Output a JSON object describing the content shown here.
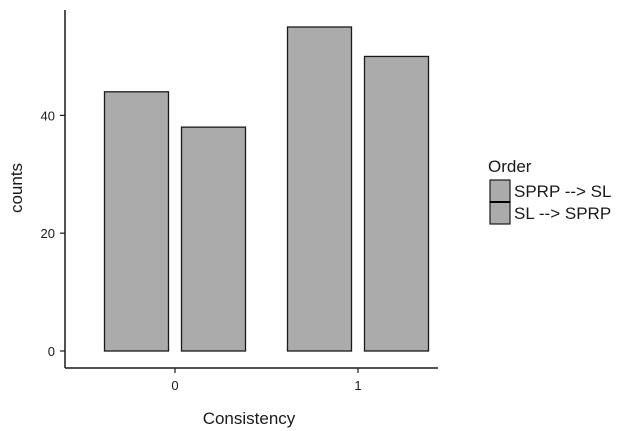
{
  "chart_data": {
    "type": "bar",
    "title": "",
    "xlabel": "Consistency",
    "ylabel": "counts",
    "categories": [
      "0",
      "1"
    ],
    "series": [
      {
        "name": "SPRP --> SL",
        "values": [
          44,
          55
        ]
      },
      {
        "name": "SL --> SPRP",
        "values": [
          38,
          50
        ]
      }
    ],
    "ylim": [
      0,
      58
    ],
    "yticks": [
      0,
      20,
      40
    ],
    "grid": false,
    "legend": {
      "title": "Order",
      "position": "right"
    },
    "colors": {
      "bar_fill": "#ababab",
      "bar_stroke": "#1a1a1a",
      "axis": "#1a1a1a"
    }
  }
}
